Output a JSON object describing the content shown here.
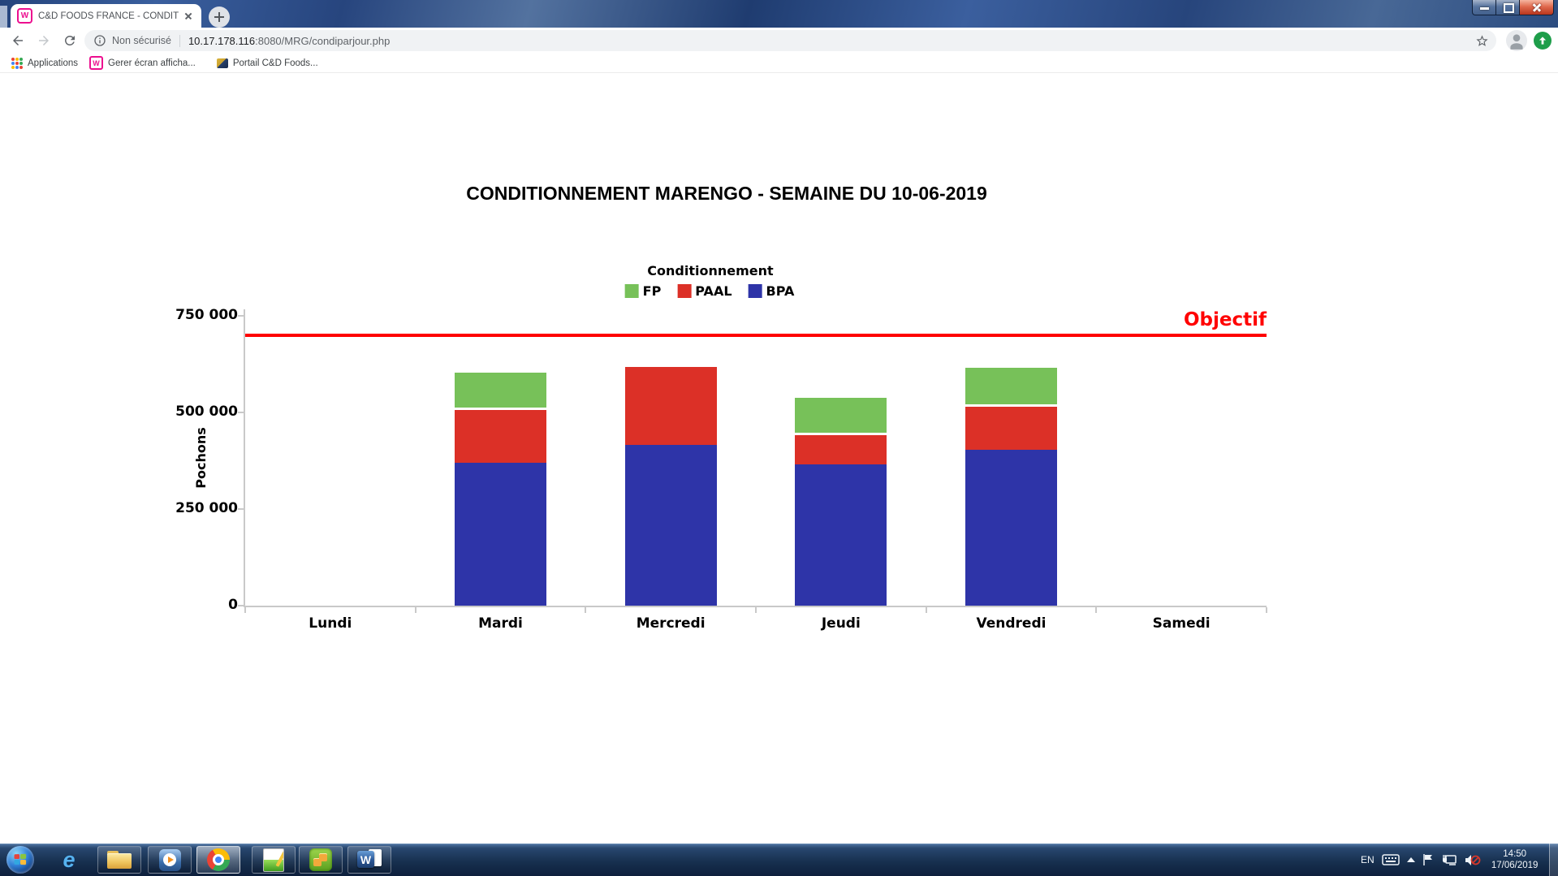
{
  "browser": {
    "tab_title": "C&D FOODS FRANCE - CONDITI",
    "omnibox": {
      "security_label": "Non sécurisé",
      "host": "10.17.178.116",
      "path": ":8080/MRG/condiparjour.php"
    },
    "bookmarks": [
      "Applications",
      "Gerer écran afficha...",
      "Portail C&D Foods..."
    ]
  },
  "icon_glyphs": {
    "wamp": "W",
    "ie": "e",
    "word": "W"
  },
  "chart_data": {
    "type": "bar",
    "stacked": true,
    "title": "CONDITIONNEMENT MARENGO - SEMAINE DU 10-06-2019",
    "legend_title": "Conditionnement",
    "legend_position": "top",
    "legend_order": [
      "FP",
      "PAAL",
      "BPA"
    ],
    "categories": [
      "Lundi",
      "Mardi",
      "Mercredi",
      "Jeudi",
      "Vendredi",
      "Samedi"
    ],
    "series": [
      {
        "name": "BPA",
        "color": "#2e34a8",
        "values": [
          0,
          370000,
          416000,
          366000,
          403000,
          0
        ]
      },
      {
        "name": "PAAL",
        "color": "#dc3027",
        "values": [
          0,
          143000,
          207000,
          81000,
          117000,
          0
        ]
      },
      {
        "name": "FP",
        "color": "#77c159",
        "values": [
          0,
          96000,
          0,
          98000,
          101000,
          0
        ]
      }
    ],
    "ylabel": "Pochons",
    "ylim": [
      0,
      750000
    ],
    "yticks": [
      0,
      250000,
      500000,
      750000
    ],
    "ytick_labels": [
      "0",
      "250 000",
      "500 000",
      "750 000"
    ],
    "grid": false,
    "objectif": {
      "label": "Objectif",
      "value": 700000,
      "color": "#ff0000"
    }
  },
  "taskbar": {
    "lang": "EN",
    "time": "14:50",
    "date": "17/06/2019"
  }
}
